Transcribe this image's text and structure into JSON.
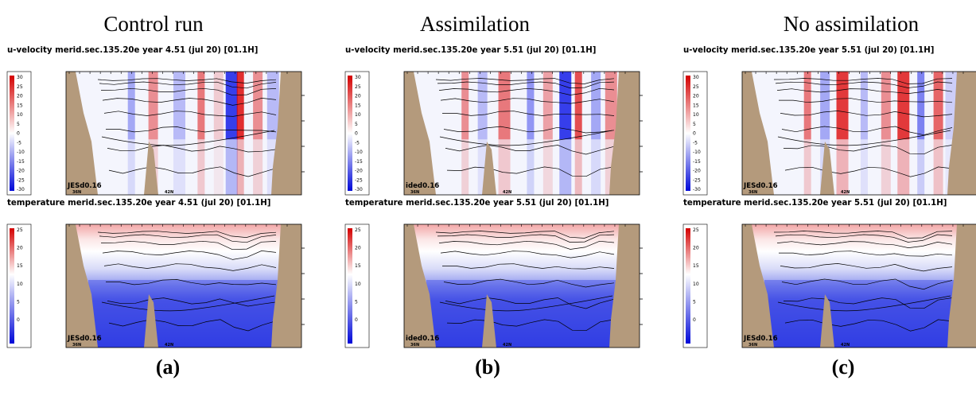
{
  "columns": [
    {
      "heading": "Control run",
      "label": "(a)",
      "run_code": "JESd0.16",
      "u_title": "u-velocity merid.sec.135.20e   year   4.51  (jul 20)  [01.1H]",
      "t_title": "temperature merid.sec.135.20e   year   4.51  (jul 20)  [01.1H]"
    },
    {
      "heading": "Assimilation",
      "label": "(b)",
      "run_code": "ided0.16",
      "u_title": "u-velocity merid.sec.135.20e   year   5.51  (jul 20)  [01.1H]",
      "t_title": "temperature merid.sec.135.20e   year   5.51  (jul 20)  [01.1H]"
    },
    {
      "heading": "No assimilation",
      "label": "(c)",
      "run_code": "JESd0.16",
      "u_title": "u-velocity merid.sec.135.20e   year   5.51  (jul 20)  [01.1H]",
      "t_title": "temperature merid.sec.135.20e   year   5.51  (jul 20)  [01.1H]"
    }
  ],
  "chart_data": [
    {
      "type": "heatmap",
      "variable": "u-velocity",
      "colorbar_ticks": [
        30,
        25,
        20,
        15,
        10,
        5,
        0,
        -5,
        -10,
        -15,
        -20,
        -25,
        -30
      ],
      "colorbar_range": [
        -30,
        30
      ],
      "x_tick_labels": [
        "36N",
        "42N"
      ]
    },
    {
      "type": "heatmap",
      "variable": "temperature",
      "colorbar_ticks": [
        25,
        20,
        15,
        10,
        5,
        0
      ],
      "colorbar_range": [
        -2,
        28
      ],
      "x_tick_labels": [
        "36N",
        "42N"
      ]
    }
  ],
  "colors": {
    "land": "#b49a7c",
    "warm": "#e10000",
    "cold": "#0a14e0",
    "neutral": "#ffffff"
  }
}
